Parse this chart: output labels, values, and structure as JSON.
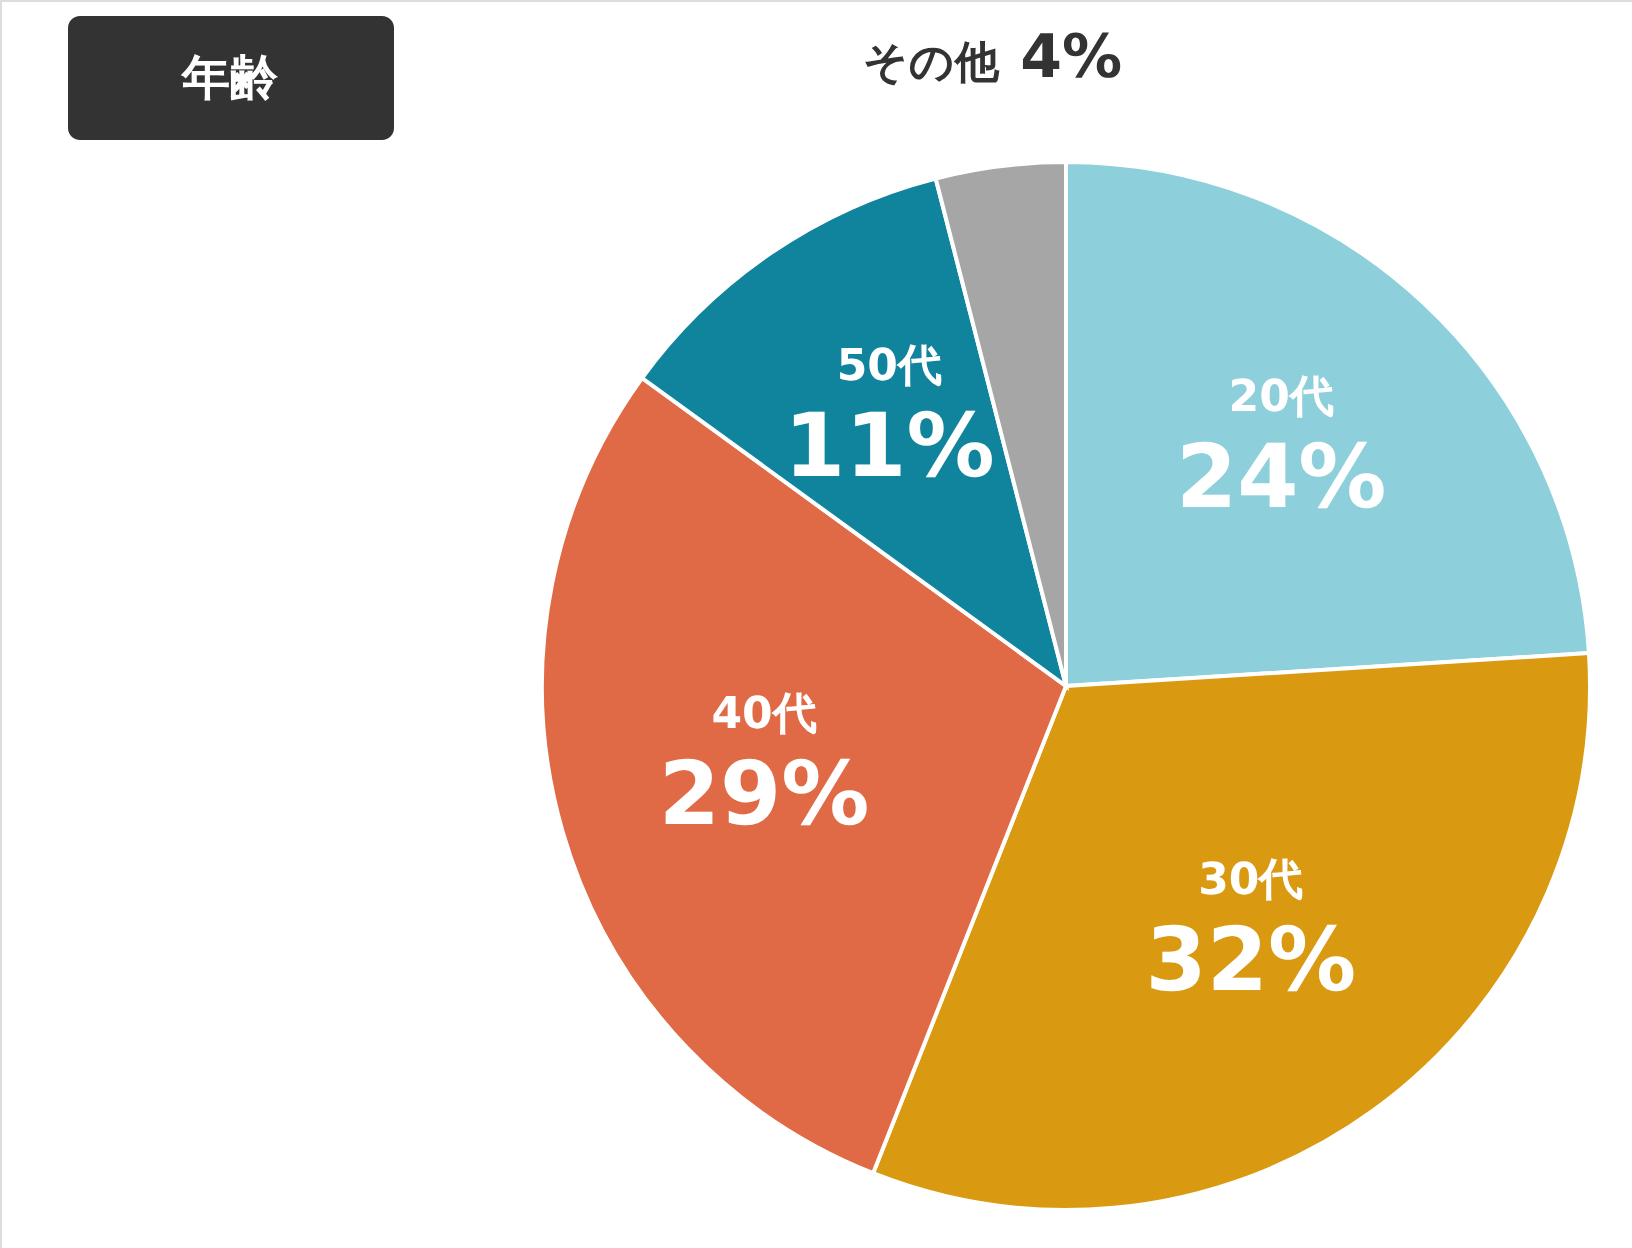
{
  "chart_data": {
    "type": "pie",
    "title": "年齢",
    "categories": [
      "20代",
      "30代",
      "40代",
      "50代",
      "その他"
    ],
    "values": [
      24,
      32,
      29,
      11,
      4
    ],
    "value_labels": [
      "24%",
      "32%",
      "29%",
      "11%",
      "4%"
    ],
    "colors": [
      "#8ecfdc",
      "#d99a12",
      "#e06a45",
      "#10849c",
      "#a6a6a6"
    ]
  }
}
